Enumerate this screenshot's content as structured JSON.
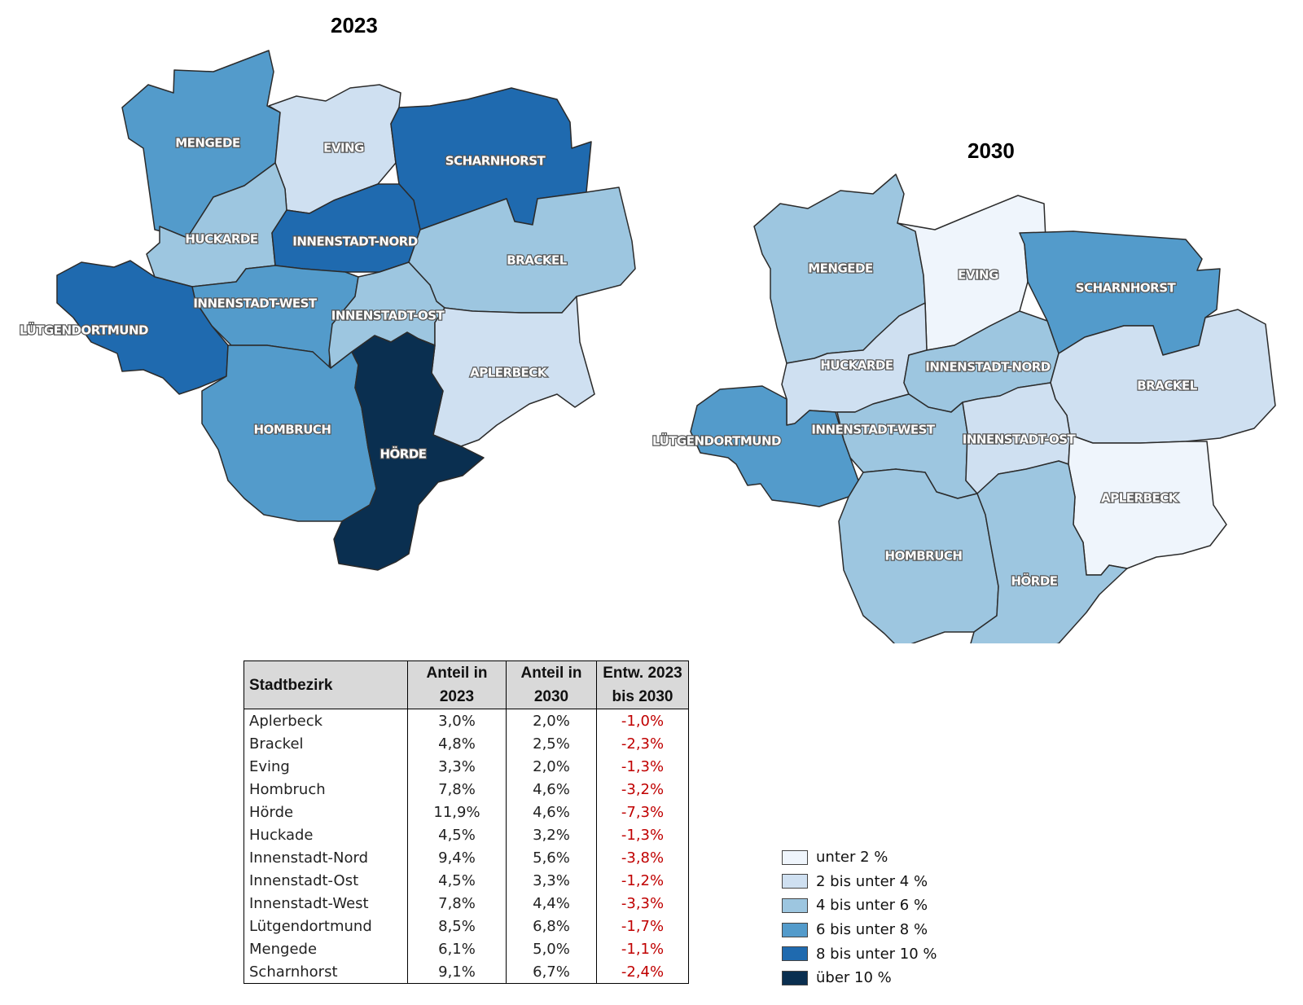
{
  "maps": [
    {
      "title": "2023",
      "labels": [
        "MENGEDE",
        "EVING",
        "SCHARNHORST",
        "HUCKARDE",
        "INNENSTADT-NORD",
        "BRACKEL",
        "INNENSTADT-WEST",
        "INNENSTADT-OST",
        "LÜTGENDORTMUND",
        "APLERBECK",
        "HOMBRUCH",
        "HÖRDE"
      ]
    },
    {
      "title": "2030",
      "labels": [
        "MENGEDE",
        "EVING",
        "SCHARNHORST",
        "HUCKARDE",
        "INNENSTADT-NORD",
        "BRACKEL",
        "INNENSTADT-WEST",
        "INNENSTADT-OST",
        "LÜTGENDORTMUND",
        "APLERBECK",
        "HOMBRUCH",
        "HÖRDE"
      ]
    }
  ],
  "table": {
    "headers": [
      "Stadtbezirk",
      "Anteil in 2023",
      "Anteil in 2030",
      "Entw. 2023 bis 2030"
    ],
    "header_lines": [
      [
        "Stadtbezirk"
      ],
      [
        "Anteil in",
        "2023"
      ],
      [
        "Anteil in",
        "2030"
      ],
      [
        "Entw. 2023",
        "bis 2030"
      ]
    ],
    "rows": [
      [
        "Aplerbeck",
        "3,0%",
        "2,0%",
        "-1,0%"
      ],
      [
        "Brackel",
        "4,8%",
        "2,5%",
        "-2,3%"
      ],
      [
        "Eving",
        "3,3%",
        "2,0%",
        "-1,3%"
      ],
      [
        "Hombruch",
        "7,8%",
        "4,6%",
        "-3,2%"
      ],
      [
        "Hörde",
        "11,9%",
        "4,6%",
        "-7,3%"
      ],
      [
        "Huckade",
        "4,5%",
        "3,2%",
        "-1,3%"
      ],
      [
        "Innenstadt-Nord",
        "9,4%",
        "5,6%",
        "-3,8%"
      ],
      [
        "Innenstadt-Ost",
        "4,5%",
        "3,3%",
        "-1,2%"
      ],
      [
        "Innenstadt-West",
        "7,8%",
        "4,4%",
        "-3,3%"
      ],
      [
        "Lütgendortmund",
        "8,5%",
        "6,8%",
        "-1,7%"
      ],
      [
        "Mengede",
        "6,1%",
        "5,0%",
        "-1,1%"
      ],
      [
        "Scharnhorst",
        "9,1%",
        "6,7%",
        "-2,4%"
      ]
    ]
  },
  "legend": [
    {
      "label": "unter 2 %",
      "color": "#eff5fc"
    },
    {
      "label": "2 bis unter 4 %",
      "color": "#cfe0f1"
    },
    {
      "label": "4 bis unter 6 %",
      "color": "#9dc6e0"
    },
    {
      "label": "6 bis unter 8 %",
      "color": "#539bcb"
    },
    {
      "label": "8 bis unter 10 %",
      "color": "#1f6aaf"
    },
    {
      "label": "über 10 %",
      "color": "#0a2f50"
    }
  ],
  "district_colors": {
    "2023": {
      "MENGEDE": "#539bcb",
      "EVING": "#cfe0f1",
      "SCHARNHORST": "#1f6aaf",
      "HUCKARDE": "#9dc6e0",
      "INNENSTADT-NORD": "#1f6aaf",
      "BRACKEL": "#9dc6e0",
      "INNENSTADT-WEST": "#539bcb",
      "INNENSTADT-OST": "#9dc6e0",
      "LÜTGENDORTMUND": "#1f6aaf",
      "APLERBECK": "#cfe0f1",
      "HOMBRUCH": "#539bcb",
      "HÖRDE": "#0a2f50"
    },
    "2030": {
      "MENGEDE": "#9dc6e0",
      "EVING": "#eff5fc",
      "SCHARNHORST": "#539bcb",
      "HUCKARDE": "#cfe0f1",
      "INNENSTADT-NORD": "#9dc6e0",
      "BRACKEL": "#cfe0f1",
      "INNENSTADT-WEST": "#9dc6e0",
      "INNENSTADT-OST": "#cfe0f1",
      "LÜTGENDORTMUND": "#539bcb",
      "APLERBECK": "#eff5fc",
      "HOMBRUCH": "#9dc6e0",
      "HÖRDE": "#9dc6e0"
    }
  }
}
